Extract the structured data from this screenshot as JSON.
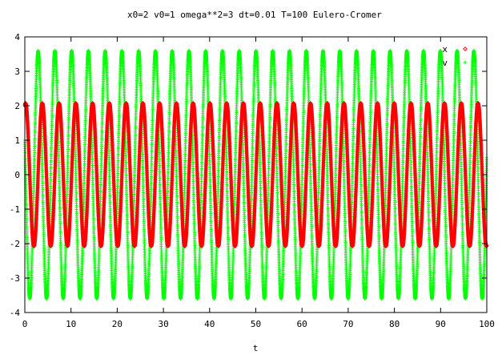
{
  "chart_data": {
    "type": "scatter",
    "title": "x0=2 v0=1 omega**2=3 dt=0.01 T=100 Eulero-Cromer",
    "xlabel": "t",
    "ylabel": "",
    "xlim": [
      0,
      100
    ],
    "ylim": [
      -4,
      4
    ],
    "x_ticks": [
      "0",
      "10",
      "20",
      "30",
      "40",
      "50",
      "60",
      "70",
      "80",
      "90",
      "100"
    ],
    "y_ticks": [
      "-4",
      "-3",
      "-2",
      "-1",
      "0",
      "1",
      "2",
      "3",
      "4"
    ],
    "grid": false,
    "legend_position": "top-right",
    "colors": {
      "x": "#ff0000",
      "v": "#00ff00"
    },
    "parameters": {
      "x0": 2,
      "v0": 1,
      "omega2": 3,
      "dt": 0.01,
      "T": 100
    },
    "series": [
      {
        "name": "x",
        "marker": "diamond",
        "color": "#ff0000"
      },
      {
        "name": "v",
        "marker": "plus",
        "color": "#00ff00"
      }
    ]
  }
}
